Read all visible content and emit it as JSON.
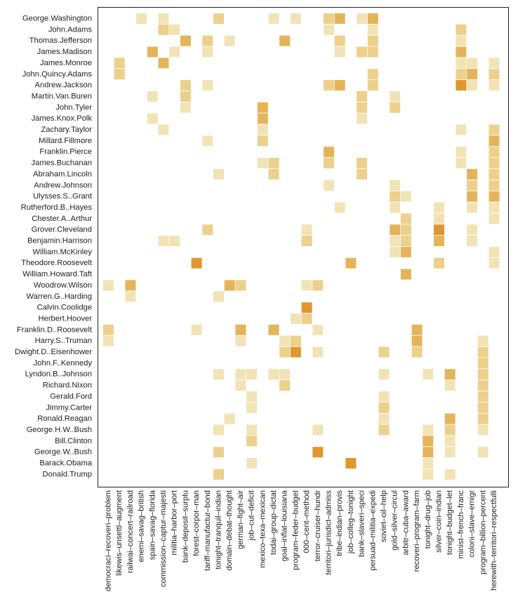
{
  "chart_data": {
    "type": "heatmap",
    "title": "",
    "xlabel": "",
    "ylabel": "",
    "rows": [
      "George.Washington",
      "John.Adams",
      "Thomas.Jefferson",
      "James.Madison",
      "James.Monroe",
      "John.Quincy.Adams",
      "Andrew.Jackson",
      "Martin.Van.Buren",
      "John.Tyler",
      "James.Knox.Polk",
      "Zachary.Taylor",
      "Millard.Fillmore",
      "Franklin.Pierce",
      "James.Buchanan",
      "Abraham.Lincoln",
      "Andrew.Johnson",
      "Ulysses.S..Grant",
      "Rutherford.B..Hayes",
      "Chester.A..Arthur",
      "Grover.Cleveland",
      "Benjamin.Harrison",
      "William.McKinley",
      "Theodore.Roosevelt",
      "William.Howard.Taft",
      "Woodrow.Wilson",
      "Warren.G..Harding",
      "Calvin.Coolidge",
      "Herbert.Hoover",
      "Franklin.D..Roosevelt",
      "Harry.S..Truman",
      "Dwight.D..Eisenhower",
      "John.F..Kennedy",
      "Lyndon.B..Johnson",
      "Richard.Nixon",
      "Gerald.Ford",
      "Jimmy.Carter",
      "Ronald.Reagan",
      "George.H.W..Bush",
      "Bill.Clinton",
      "George.W..Bush",
      "Barack.Obama",
      "Donald.Trump"
    ],
    "columns": [
      "democraci–recoveri–problem",
      "likewis–unsettl–augment",
      "railwai–concert–railroad",
      "enemi–savag–british",
      "spain–savag–florida",
      "commission–captur–majesti",
      "militia–harbor–port",
      "bank–deposit–surplu",
      "forest–corpor–man",
      "tariff–manufactur–bond",
      "tonight–tranquil–indian",
      "domain–debat–thought",
      "german–fight–air",
      "job–cut–deficit",
      "mexico–texa–mexican",
      "todai–group–dictat",
      "goal–inflat–louisiana",
      "program–feder–budget",
      "000–cent–method",
      "terror–cruiser–hundr",
      "territori–jurisdict–admiss",
      "tribe–indian–provis",
      "job–colleg–tonight",
      "bank–slaveri–speci",
      "persuad–militia–expedi",
      "soviet–oil–help",
      "gold–silver–circul",
      "arbitr–cuba–award",
      "recoveri–program–farm",
      "tonight–drug–job",
      "silver–coin–indian",
      "tonight–budget–let",
      "minist–french–franc",
      "coloni–slave–emigr",
      "program–billion–percent",
      "herewith–territori–respectfulli"
    ],
    "value_range": [
      0,
      5
    ],
    "colors": [
      "#f2e3b6",
      "#ecd08c",
      "#e5b45a",
      "#e0972e",
      "#f06b1c"
    ],
    "cells": [
      [
        0,
        3,
        1
      ],
      [
        0,
        5,
        1
      ],
      [
        0,
        10,
        2
      ],
      [
        0,
        15,
        1
      ],
      [
        0,
        17,
        1
      ],
      [
        0,
        20,
        2
      ],
      [
        0,
        21,
        3
      ],
      [
        0,
        23,
        1
      ],
      [
        0,
        24,
        3
      ],
      [
        1,
        5,
        2
      ],
      [
        1,
        6,
        1
      ],
      [
        1,
        20,
        1
      ],
      [
        1,
        24,
        1
      ],
      [
        1,
        32,
        2
      ],
      [
        2,
        7,
        3
      ],
      [
        2,
        9,
        2
      ],
      [
        2,
        11,
        1
      ],
      [
        2,
        16,
        3
      ],
      [
        2,
        21,
        2
      ],
      [
        2,
        24,
        2
      ],
      [
        2,
        32,
        1
      ],
      [
        3,
        4,
        3
      ],
      [
        3,
        6,
        1
      ],
      [
        3,
        9,
        1
      ],
      [
        3,
        21,
        1
      ],
      [
        3,
        23,
        2
      ],
      [
        3,
        24,
        2
      ],
      [
        3,
        32,
        3
      ],
      [
        4,
        1,
        2
      ],
      [
        4,
        5,
        3
      ],
      [
        4,
        32,
        1
      ],
      [
        4,
        33,
        1
      ],
      [
        4,
        35,
        1
      ],
      [
        5,
        1,
        2
      ],
      [
        5,
        24,
        2
      ],
      [
        5,
        32,
        2
      ],
      [
        5,
        33,
        3
      ],
      [
        5,
        35,
        2
      ],
      [
        6,
        7,
        2
      ],
      [
        6,
        9,
        1
      ],
      [
        6,
        20,
        2
      ],
      [
        6,
        21,
        3
      ],
      [
        6,
        24,
        2
      ],
      [
        6,
        32,
        4
      ],
      [
        6,
        33,
        1
      ],
      [
        6,
        35,
        1
      ],
      [
        7,
        4,
        1
      ],
      [
        7,
        7,
        2
      ],
      [
        7,
        23,
        2
      ],
      [
        7,
        26,
        1
      ],
      [
        8,
        7,
        1
      ],
      [
        8,
        14,
        3
      ],
      [
        8,
        23,
        2
      ],
      [
        8,
        26,
        2
      ],
      [
        9,
        4,
        1
      ],
      [
        9,
        14,
        3
      ],
      [
        9,
        23,
        1
      ],
      [
        10,
        5,
        1
      ],
      [
        10,
        14,
        1
      ],
      [
        10,
        32,
        1
      ],
      [
        10,
        35,
        2
      ],
      [
        11,
        9,
        1
      ],
      [
        11,
        14,
        2
      ],
      [
        11,
        35,
        3
      ],
      [
        12,
        20,
        3
      ],
      [
        12,
        32,
        1
      ],
      [
        12,
        35,
        2
      ],
      [
        13,
        14,
        1
      ],
      [
        13,
        15,
        2
      ],
      [
        13,
        20,
        2
      ],
      [
        13,
        23,
        2
      ],
      [
        13,
        32,
        1
      ],
      [
        13,
        35,
        2
      ],
      [
        14,
        10,
        1
      ],
      [
        14,
        15,
        2
      ],
      [
        14,
        23,
        2
      ],
      [
        14,
        33,
        3
      ],
      [
        14,
        35,
        2
      ],
      [
        15,
        20,
        1
      ],
      [
        15,
        26,
        1
      ],
      [
        15,
        33,
        2
      ],
      [
        15,
        35,
        2
      ],
      [
        16,
        26,
        2
      ],
      [
        16,
        27,
        1
      ],
      [
        16,
        33,
        3
      ],
      [
        16,
        35,
        3
      ],
      [
        17,
        21,
        1
      ],
      [
        17,
        26,
        1
      ],
      [
        17,
        30,
        1
      ],
      [
        17,
        33,
        1
      ],
      [
        17,
        35,
        1
      ],
      [
        18,
        27,
        2
      ],
      [
        18,
        30,
        1
      ],
      [
        18,
        35,
        1
      ],
      [
        19,
        9,
        2
      ],
      [
        19,
        18,
        1
      ],
      [
        19,
        26,
        3
      ],
      [
        19,
        27,
        2
      ],
      [
        19,
        30,
        4
      ],
      [
        19,
        33,
        1
      ],
      [
        20,
        5,
        1
      ],
      [
        20,
        6,
        1
      ],
      [
        20,
        18,
        2
      ],
      [
        20,
        26,
        1
      ],
      [
        20,
        27,
        2
      ],
      [
        20,
        30,
        3
      ],
      [
        20,
        33,
        1
      ],
      [
        21,
        26,
        1
      ],
      [
        21,
        27,
        3
      ],
      [
        21,
        35,
        1
      ],
      [
        22,
        8,
        4
      ],
      [
        22,
        22,
        3
      ],
      [
        22,
        30,
        2
      ],
      [
        22,
        35,
        1
      ],
      [
        23,
        27,
        3
      ],
      [
        24,
        0,
        1
      ],
      [
        24,
        2,
        3
      ],
      [
        24,
        11,
        3
      ],
      [
        24,
        12,
        2
      ],
      [
        24,
        18,
        1
      ],
      [
        24,
        19,
        2
      ],
      [
        25,
        2,
        1
      ],
      [
        25,
        10,
        1
      ],
      [
        26,
        18,
        4
      ],
      [
        27,
        17,
        1
      ],
      [
        27,
        18,
        2
      ],
      [
        28,
        0,
        2
      ],
      [
        28,
        8,
        1
      ],
      [
        28,
        12,
        3
      ],
      [
        28,
        15,
        3
      ],
      [
        28,
        19,
        1
      ],
      [
        28,
        28,
        3
      ],
      [
        29,
        0,
        1
      ],
      [
        29,
        12,
        1
      ],
      [
        29,
        16,
        1
      ],
      [
        29,
        17,
        2
      ],
      [
        29,
        28,
        3
      ],
      [
        29,
        34,
        1
      ],
      [
        30,
        16,
        2
      ],
      [
        30,
        17,
        4
      ],
      [
        30,
        19,
        1
      ],
      [
        30,
        25,
        2
      ],
      [
        30,
        28,
        2
      ],
      [
        30,
        34,
        2
      ],
      [
        31,
        34,
        2
      ],
      [
        32,
        10,
        1
      ],
      [
        32,
        12,
        1
      ],
      [
        32,
        13,
        1
      ],
      [
        32,
        15,
        1
      ],
      [
        32,
        16,
        1
      ],
      [
        32,
        25,
        1
      ],
      [
        32,
        29,
        1
      ],
      [
        32,
        31,
        3
      ],
      [
        32,
        34,
        2
      ],
      [
        33,
        12,
        1
      ],
      [
        33,
        16,
        2
      ],
      [
        33,
        31,
        1
      ],
      [
        33,
        34,
        2
      ],
      [
        34,
        13,
        1
      ],
      [
        34,
        25,
        1
      ],
      [
        34,
        34,
        2
      ],
      [
        35,
        13,
        1
      ],
      [
        35,
        25,
        2
      ],
      [
        35,
        34,
        2
      ],
      [
        36,
        11,
        1
      ],
      [
        36,
        25,
        1
      ],
      [
        36,
        31,
        3
      ],
      [
        36,
        34,
        2
      ],
      [
        37,
        10,
        1
      ],
      [
        37,
        13,
        1
      ],
      [
        37,
        19,
        1
      ],
      [
        37,
        25,
        2
      ],
      [
        37,
        29,
        1
      ],
      [
        37,
        31,
        2
      ],
      [
        37,
        34,
        1
      ],
      [
        38,
        13,
        2
      ],
      [
        38,
        29,
        3
      ],
      [
        38,
        31,
        1
      ],
      [
        39,
        10,
        2
      ],
      [
        39,
        19,
        4
      ],
      [
        39,
        29,
        3
      ],
      [
        39,
        31,
        1
      ],
      [
        39,
        34,
        1
      ],
      [
        40,
        13,
        1
      ],
      [
        40,
        22,
        4
      ],
      [
        40,
        29,
        1
      ],
      [
        41,
        10,
        2
      ],
      [
        41,
        29,
        1
      ],
      [
        41,
        31,
        1
      ]
    ]
  }
}
